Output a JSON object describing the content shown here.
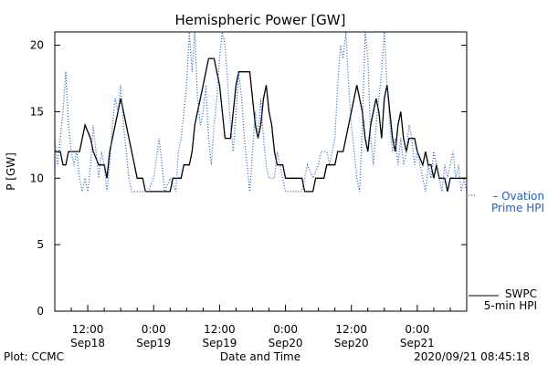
{
  "chart_data": {
    "type": "line",
    "title": "Hemispheric Power [GW]",
    "ylabel": "P [GW]",
    "xlabel": "Date and Time",
    "ylim": [
      0,
      21
    ],
    "yticks": [
      0,
      5,
      10,
      15,
      20
    ],
    "xlim": [
      "2020-09-18 06:00",
      "2020-09-21 09:00"
    ],
    "xticks": [
      {
        "t": "2020-09-18 12:00",
        "line1": "12:00",
        "line2": "Sep18"
      },
      {
        "t": "2020-09-19 00:00",
        "line1": "0:00",
        "line2": "Sep19"
      },
      {
        "t": "2020-09-19 12:00",
        "line1": "12:00",
        "line2": "Sep19"
      },
      {
        "t": "2020-09-20 00:00",
        "line1": "0:00",
        "line2": "Sep20"
      },
      {
        "t": "2020-09-20 12:00",
        "line1": "12:00",
        "line2": "Sep20"
      },
      {
        "t": "2020-09-21 00:00",
        "line1": "0:00",
        "line2": "Sep21"
      }
    ],
    "series": [
      {
        "name": "SWPC 5-min HPI",
        "legend_lines": [
          "SWPC",
          "5-min HPI"
        ],
        "color": "#000000",
        "style": "solid",
        "points": [
          [
            "2020-09-18 06:00",
            12
          ],
          [
            "2020-09-18 07:00",
            12
          ],
          [
            "2020-09-18 07:30",
            11
          ],
          [
            "2020-09-18 08:00",
            11
          ],
          [
            "2020-09-18 08:30",
            12
          ],
          [
            "2020-09-18 10:30",
            12
          ],
          [
            "2020-09-18 11:00",
            13
          ],
          [
            "2020-09-18 11:30",
            14
          ],
          [
            "2020-09-18 12:30",
            13
          ],
          [
            "2020-09-18 13:00",
            12
          ],
          [
            "2020-09-18 14:00",
            11
          ],
          [
            "2020-09-18 15:00",
            11
          ],
          [
            "2020-09-18 15:30",
            10
          ],
          [
            "2020-09-18 16:00",
            12
          ],
          [
            "2020-09-18 16:30",
            13
          ],
          [
            "2020-09-18 17:00",
            14
          ],
          [
            "2020-09-18 17:30",
            15
          ],
          [
            "2020-09-18 18:00",
            16
          ],
          [
            "2020-09-18 18:30",
            15
          ],
          [
            "2020-09-18 19:00",
            14
          ],
          [
            "2020-09-18 19:30",
            13
          ],
          [
            "2020-09-18 20:00",
            12
          ],
          [
            "2020-09-18 20:30",
            11
          ],
          [
            "2020-09-18 21:00",
            10
          ],
          [
            "2020-09-18 22:00",
            10
          ],
          [
            "2020-09-18 22:30",
            9
          ],
          [
            "2020-09-19 03:00",
            9
          ],
          [
            "2020-09-19 03:30",
            10
          ],
          [
            "2020-09-19 05:00",
            10
          ],
          [
            "2020-09-19 05:30",
            11
          ],
          [
            "2020-09-19 06:30",
            11
          ],
          [
            "2020-09-19 07:00",
            12
          ],
          [
            "2020-09-19 07:30",
            14
          ],
          [
            "2020-09-19 08:00",
            15
          ],
          [
            "2020-09-19 08:30",
            16
          ],
          [
            "2020-09-19 09:00",
            17
          ],
          [
            "2020-09-19 09:30",
            18
          ],
          [
            "2020-09-19 10:00",
            19
          ],
          [
            "2020-09-19 11:00",
            19
          ],
          [
            "2020-09-19 11:30",
            18
          ],
          [
            "2020-09-19 12:00",
            17
          ],
          [
            "2020-09-19 12:30",
            15
          ],
          [
            "2020-09-19 13:00",
            13
          ],
          [
            "2020-09-19 14:00",
            13
          ],
          [
            "2020-09-19 14:30",
            15
          ],
          [
            "2020-09-19 15:00",
            17
          ],
          [
            "2020-09-19 15:30",
            18
          ],
          [
            "2020-09-19 17:30",
            18
          ],
          [
            "2020-09-19 18:00",
            16
          ],
          [
            "2020-09-19 18:30",
            14
          ],
          [
            "2020-09-19 19:00",
            13
          ],
          [
            "2020-09-19 19:30",
            14
          ],
          [
            "2020-09-19 20:00",
            16
          ],
          [
            "2020-09-19 20:30",
            17
          ],
          [
            "2020-09-19 21:00",
            15
          ],
          [
            "2020-09-19 21:30",
            14
          ],
          [
            "2020-09-19 22:00",
            12
          ],
          [
            "2020-09-19 22:30",
            11
          ],
          [
            "2020-09-19 23:30",
            11
          ],
          [
            "2020-09-20 00:00",
            10
          ],
          [
            "2020-09-20 03:00",
            10
          ],
          [
            "2020-09-20 03:30",
            9
          ],
          [
            "2020-09-20 05:00",
            9
          ],
          [
            "2020-09-20 05:30",
            10
          ],
          [
            "2020-09-20 07:00",
            10
          ],
          [
            "2020-09-20 07:30",
            11
          ],
          [
            "2020-09-20 09:00",
            11
          ],
          [
            "2020-09-20 09:30",
            12
          ],
          [
            "2020-09-20 10:30",
            12
          ],
          [
            "2020-09-20 11:00",
            13
          ],
          [
            "2020-09-20 11:30",
            14
          ],
          [
            "2020-09-20 12:00",
            15
          ],
          [
            "2020-09-20 12:30",
            16
          ],
          [
            "2020-09-20 13:00",
            17
          ],
          [
            "2020-09-20 13:30",
            16
          ],
          [
            "2020-09-20 14:00",
            15
          ],
          [
            "2020-09-20 14:30",
            13
          ],
          [
            "2020-09-20 15:00",
            12
          ],
          [
            "2020-09-20 15:30",
            14
          ],
          [
            "2020-09-20 16:00",
            15
          ],
          [
            "2020-09-20 16:30",
            16
          ],
          [
            "2020-09-20 17:00",
            15
          ],
          [
            "2020-09-20 17:30",
            13
          ],
          [
            "2020-09-20 18:00",
            16
          ],
          [
            "2020-09-20 18:30",
            17
          ],
          [
            "2020-09-20 19:00",
            15
          ],
          [
            "2020-09-20 19:30",
            13
          ],
          [
            "2020-09-20 20:00",
            12
          ],
          [
            "2020-09-20 20:30",
            14
          ],
          [
            "2020-09-20 21:00",
            15
          ],
          [
            "2020-09-20 21:30",
            13
          ],
          [
            "2020-09-20 22:00",
            12
          ],
          [
            "2020-09-20 22:30",
            13
          ],
          [
            "2020-09-20 23:30",
            13
          ],
          [
            "2020-09-21 00:00",
            12
          ],
          [
            "2020-09-21 01:00",
            11
          ],
          [
            "2020-09-21 01:30",
            12
          ],
          [
            "2020-09-21 02:00",
            11
          ],
          [
            "2020-09-21 02:30",
            11
          ],
          [
            "2020-09-21 03:00",
            10
          ],
          [
            "2020-09-21 03:30",
            11
          ],
          [
            "2020-09-21 04:00",
            10
          ],
          [
            "2020-09-21 05:00",
            10
          ],
          [
            "2020-09-21 05:30",
            9
          ],
          [
            "2020-09-21 06:00",
            10
          ],
          [
            "2020-09-21 09:00",
            10
          ]
        ]
      },
      {
        "name": "Ovation Prime HPI",
        "legend_lines": [
          "– Ovation",
          "Prime HPI"
        ],
        "color": "#1f5fbf",
        "style": "dotted",
        "points": [
          [
            "2020-09-18 06:00",
            13
          ],
          [
            "2020-09-18 06:30",
            11
          ],
          [
            "2020-09-18 07:00",
            13
          ],
          [
            "2020-09-18 07:30",
            15
          ],
          [
            "2020-09-18 08:00",
            18
          ],
          [
            "2020-09-18 08:30",
            14
          ],
          [
            "2020-09-18 09:00",
            12
          ],
          [
            "2020-09-18 09:30",
            11
          ],
          [
            "2020-09-18 10:00",
            12
          ],
          [
            "2020-09-18 10:30",
            10
          ],
          [
            "2020-09-18 11:00",
            9
          ],
          [
            "2020-09-18 11:30",
            10
          ],
          [
            "2020-09-18 12:00",
            9
          ],
          [
            "2020-09-18 12:30",
            11
          ],
          [
            "2020-09-18 13:00",
            14
          ],
          [
            "2020-09-18 13:30",
            12
          ],
          [
            "2020-09-18 14:00",
            10
          ],
          [
            "2020-09-18 14:30",
            12
          ],
          [
            "2020-09-18 15:00",
            11
          ],
          [
            "2020-09-18 15:30",
            9
          ],
          [
            "2020-09-18 16:00",
            11
          ],
          [
            "2020-09-18 16:30",
            14
          ],
          [
            "2020-09-18 17:00",
            16
          ],
          [
            "2020-09-18 17:30",
            15
          ],
          [
            "2020-09-18 18:00",
            17
          ],
          [
            "2020-09-18 18:30",
            14
          ],
          [
            "2020-09-18 19:00",
            12
          ],
          [
            "2020-09-18 19:30",
            10
          ],
          [
            "2020-09-18 20:00",
            9
          ],
          [
            "2020-09-18 21:00",
            9
          ],
          [
            "2020-09-18 22:00",
            9
          ],
          [
            "2020-09-18 23:00",
            9
          ],
          [
            "2020-09-19 00:00",
            10
          ],
          [
            "2020-09-19 01:00",
            13
          ],
          [
            "2020-09-19 01:30",
            11
          ],
          [
            "2020-09-19 02:00",
            9
          ],
          [
            "2020-09-19 03:00",
            10
          ],
          [
            "2020-09-19 04:00",
            9
          ],
          [
            "2020-09-19 04:30",
            12
          ],
          [
            "2020-09-19 05:00",
            13
          ],
          [
            "2020-09-19 05:30",
            15
          ],
          [
            "2020-09-19 06:00",
            17
          ],
          [
            "2020-09-19 06:30",
            21
          ],
          [
            "2020-09-19 07:00",
            18
          ],
          [
            "2020-09-19 07:30",
            21
          ],
          [
            "2020-09-19 08:00",
            16
          ],
          [
            "2020-09-19 08:30",
            14
          ],
          [
            "2020-09-19 09:00",
            15
          ],
          [
            "2020-09-19 09:30",
            17
          ],
          [
            "2020-09-19 10:00",
            13
          ],
          [
            "2020-09-19 10:30",
            11
          ],
          [
            "2020-09-19 11:00",
            14
          ],
          [
            "2020-09-19 11:30",
            16
          ],
          [
            "2020-09-19 12:00",
            19
          ],
          [
            "2020-09-19 12:30",
            21
          ],
          [
            "2020-09-19 13:00",
            20
          ],
          [
            "2020-09-19 13:30",
            17
          ],
          [
            "2020-09-19 14:00",
            14
          ],
          [
            "2020-09-19 14:30",
            12
          ],
          [
            "2020-09-19 15:00",
            15
          ],
          [
            "2020-09-19 15:30",
            18
          ],
          [
            "2020-09-19 16:00",
            16
          ],
          [
            "2020-09-19 16:30",
            13
          ],
          [
            "2020-09-19 17:00",
            11
          ],
          [
            "2020-09-19 17:30",
            9
          ],
          [
            "2020-09-19 18:00",
            12
          ],
          [
            "2020-09-19 18:30",
            15
          ],
          [
            "2020-09-19 19:00",
            13
          ],
          [
            "2020-09-19 19:30",
            16
          ],
          [
            "2020-09-19 20:00",
            13
          ],
          [
            "2020-09-19 20:30",
            11
          ],
          [
            "2020-09-19 21:00",
            10
          ],
          [
            "2020-09-19 22:00",
            10
          ],
          [
            "2020-09-19 22:30",
            12
          ],
          [
            "2020-09-19 23:00",
            11
          ],
          [
            "2020-09-19 23:30",
            10
          ],
          [
            "2020-09-20 00:00",
            9
          ],
          [
            "2020-09-20 01:00",
            9
          ],
          [
            "2020-09-20 02:00",
            9
          ],
          [
            "2020-09-20 03:00",
            9
          ],
          [
            "2020-09-20 03:30",
            10
          ],
          [
            "2020-09-20 04:00",
            11
          ],
          [
            "2020-09-20 05:00",
            10
          ],
          [
            "2020-09-20 06:00",
            11
          ],
          [
            "2020-09-20 06:30",
            12
          ],
          [
            "2020-09-20 07:30",
            12
          ],
          [
            "2020-09-20 08:00",
            11
          ],
          [
            "2020-09-20 08:30",
            12
          ],
          [
            "2020-09-20 09:00",
            13
          ],
          [
            "2020-09-20 09:30",
            17
          ],
          [
            "2020-09-20 10:00",
            20
          ],
          [
            "2020-09-20 10:30",
            19
          ],
          [
            "2020-09-20 11:00",
            21
          ],
          [
            "2020-09-20 11:30",
            17
          ],
          [
            "2020-09-20 12:00",
            14
          ],
          [
            "2020-09-20 12:30",
            12
          ],
          [
            "2020-09-20 13:00",
            10
          ],
          [
            "2020-09-20 13:30",
            9
          ],
          [
            "2020-09-20 14:00",
            14
          ],
          [
            "2020-09-20 14:30",
            21
          ],
          [
            "2020-09-20 15:00",
            19
          ],
          [
            "2020-09-20 15:30",
            13
          ],
          [
            "2020-09-20 16:00",
            11
          ],
          [
            "2020-09-20 16:30",
            14
          ],
          [
            "2020-09-20 17:00",
            16
          ],
          [
            "2020-09-20 17:30",
            18
          ],
          [
            "2020-09-20 18:00",
            21
          ],
          [
            "2020-09-20 18:30",
            17
          ],
          [
            "2020-09-20 19:00",
            14
          ],
          [
            "2020-09-20 19:30",
            12
          ],
          [
            "2020-09-20 20:00",
            13
          ],
          [
            "2020-09-20 20:30",
            11
          ],
          [
            "2020-09-20 21:00",
            13
          ],
          [
            "2020-09-20 21:30",
            11
          ],
          [
            "2020-09-20 22:00",
            12
          ],
          [
            "2020-09-20 22:30",
            14
          ],
          [
            "2020-09-20 23:00",
            13
          ],
          [
            "2020-09-20 23:30",
            11
          ],
          [
            "2020-09-21 00:00",
            12
          ],
          [
            "2020-09-21 00:30",
            11
          ],
          [
            "2020-09-21 01:00",
            10
          ],
          [
            "2020-09-21 01:30",
            9
          ],
          [
            "2020-09-21 02:00",
            11
          ],
          [
            "2020-09-21 02:30",
            10
          ],
          [
            "2020-09-21 03:00",
            12
          ],
          [
            "2020-09-21 03:30",
            11
          ],
          [
            "2020-09-21 04:00",
            10
          ],
          [
            "2020-09-21 04:30",
            9
          ],
          [
            "2020-09-21 05:00",
            11
          ],
          [
            "2020-09-21 05:30",
            10
          ],
          [
            "2020-09-21 06:00",
            11
          ],
          [
            "2020-09-21 06:30",
            12
          ],
          [
            "2020-09-21 07:00",
            10
          ],
          [
            "2020-09-21 07:30",
            11
          ],
          [
            "2020-09-21 08:00",
            9
          ],
          [
            "2020-09-21 08:30",
            10
          ],
          [
            "2020-09-21 09:00",
            9
          ]
        ]
      }
    ]
  },
  "footer": {
    "plot_credit": "Plot: CCMC",
    "timestamp": "2020/09/21 08:45:18"
  }
}
